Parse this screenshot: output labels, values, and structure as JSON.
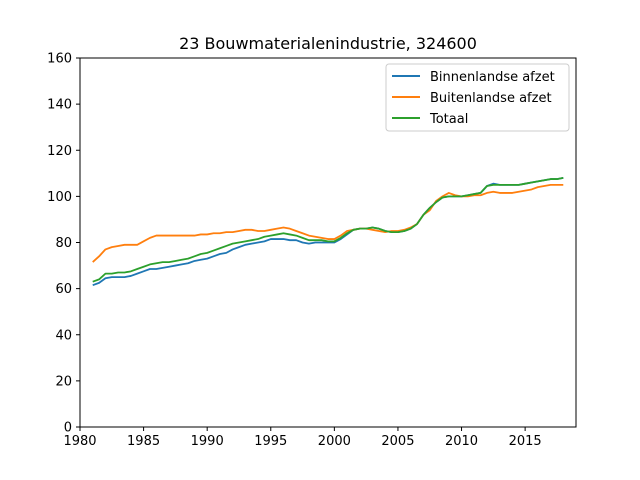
{
  "chart_data": {
    "type": "line",
    "title": "23 Bouwmaterialenindustrie, 324600",
    "xlabel": "",
    "ylabel": "",
    "xlim": [
      1980,
      2019
    ],
    "ylim": [
      0,
      160
    ],
    "xticks": [
      1980,
      1985,
      1990,
      1995,
      2000,
      2005,
      2010,
      2015
    ],
    "yticks": [
      0,
      20,
      40,
      60,
      80,
      100,
      120,
      140,
      160
    ],
    "grid": false,
    "legend_position": "top-right",
    "series": [
      {
        "name": "Binnenlandse afzet",
        "color": "#1f77b4",
        "x": [
          1981.0,
          1981.5,
          1982.0,
          1982.5,
          1983.0,
          1983.5,
          1984.0,
          1984.5,
          1985.0,
          1985.5,
          1986.0,
          1986.5,
          1987.0,
          1987.5,
          1988.0,
          1988.5,
          1989.0,
          1989.5,
          1990.0,
          1990.5,
          1991.0,
          1991.5,
          1992.0,
          1992.5,
          1993.0,
          1993.5,
          1994.0,
          1994.5,
          1995.0,
          1995.5,
          1996.0,
          1996.5,
          1997.0,
          1997.5,
          1998.0,
          1998.5,
          1999.0,
          1999.5,
          2000.0,
          2000.5,
          2001.0,
          2001.5,
          2002.0,
          2002.5,
          2003.0,
          2003.5,
          2004.0,
          2004.5,
          2005.0,
          2005.5,
          2006.0,
          2006.5,
          2007.0,
          2007.5,
          2008.0,
          2008.5,
          2009.0,
          2009.5,
          2010.0,
          2010.5,
          2011.0,
          2011.5,
          2012.0,
          2012.5,
          2013.0,
          2013.5,
          2014.0,
          2014.5,
          2015.0,
          2015.5,
          2016.0,
          2016.5,
          2017.0,
          2017.5,
          2018.0
        ],
        "values": [
          61.5,
          62.5,
          64.5,
          65.0,
          65.0,
          65.0,
          65.5,
          66.5,
          67.5,
          68.5,
          68.5,
          69.0,
          69.5,
          70.0,
          70.5,
          71.0,
          72.0,
          72.5,
          73.0,
          74.0,
          75.0,
          75.5,
          77.0,
          78.0,
          79.0,
          79.5,
          80.0,
          80.5,
          81.5,
          81.5,
          81.5,
          81.0,
          81.0,
          80.0,
          79.5,
          80.0,
          80.0,
          80.0,
          80.0,
          81.5,
          83.5,
          85.5,
          86.0,
          86.0,
          86.5,
          86.0,
          85.0,
          84.5,
          84.5,
          85.0,
          86.0,
          88.0,
          92.0,
          95.0,
          97.5,
          99.5,
          100.0,
          100.0,
          100.0,
          100.5,
          101.0,
          101.5,
          104.5,
          105.5,
          105.0,
          105.0,
          105.0,
          105.0,
          105.5,
          106.0,
          106.5,
          107.0,
          107.5,
          107.5,
          108.0
        ]
      },
      {
        "name": "Buitenlandse afzet",
        "color": "#ff7f0e",
        "x": [
          1981.0,
          1981.5,
          1982.0,
          1982.5,
          1983.0,
          1983.5,
          1984.0,
          1984.5,
          1985.0,
          1985.5,
          1986.0,
          1986.5,
          1987.0,
          1987.5,
          1988.0,
          1988.5,
          1989.0,
          1989.5,
          1990.0,
          1990.5,
          1991.0,
          1991.5,
          1992.0,
          1992.5,
          1993.0,
          1993.5,
          1994.0,
          1994.5,
          1995.0,
          1995.5,
          1996.0,
          1996.5,
          1997.0,
          1997.5,
          1998.0,
          1998.5,
          1999.0,
          1999.5,
          2000.0,
          2000.5,
          2001.0,
          2001.5,
          2002.0,
          2002.5,
          2003.0,
          2003.5,
          2004.0,
          2004.5,
          2005.0,
          2005.5,
          2006.0,
          2006.5,
          2007.0,
          2007.5,
          2008.0,
          2008.5,
          2009.0,
          2009.5,
          2010.0,
          2010.5,
          2011.0,
          2011.5,
          2012.0,
          2012.5,
          2013.0,
          2013.5,
          2014.0,
          2014.5,
          2015.0,
          2015.5,
          2016.0,
          2016.5,
          2017.0,
          2017.5,
          2018.0
        ],
        "values": [
          71.5,
          74.0,
          77.0,
          78.0,
          78.5,
          79.0,
          79.0,
          79.0,
          80.5,
          82.0,
          83.0,
          83.0,
          83.0,
          83.0,
          83.0,
          83.0,
          83.0,
          83.5,
          83.5,
          84.0,
          84.0,
          84.5,
          84.5,
          85.0,
          85.5,
          85.5,
          85.0,
          85.0,
          85.5,
          86.0,
          86.5,
          86.0,
          85.0,
          84.0,
          83.0,
          82.5,
          82.0,
          81.5,
          81.5,
          83.0,
          85.0,
          85.5,
          86.0,
          86.0,
          85.5,
          85.0,
          84.5,
          85.0,
          85.0,
          85.5,
          86.5,
          88.0,
          92.0,
          94.0,
          98.0,
          100.0,
          101.5,
          100.5,
          100.0,
          100.0,
          100.5,
          100.5,
          101.5,
          102.0,
          101.5,
          101.5,
          101.5,
          102.0,
          102.5,
          103.0,
          104.0,
          104.5,
          105.0,
          105.0,
          105.0
        ]
      },
      {
        "name": "Totaal",
        "color": "#2ca02c",
        "x": [
          1981.0,
          1981.5,
          1982.0,
          1982.5,
          1983.0,
          1983.5,
          1984.0,
          1984.5,
          1985.0,
          1985.5,
          1986.0,
          1986.5,
          1987.0,
          1987.5,
          1988.0,
          1988.5,
          1989.0,
          1989.5,
          1990.0,
          1990.5,
          1991.0,
          1991.5,
          1992.0,
          1992.5,
          1993.0,
          1993.5,
          1994.0,
          1994.5,
          1995.0,
          1995.5,
          1996.0,
          1996.5,
          1997.0,
          1997.5,
          1998.0,
          1998.5,
          1999.0,
          1999.5,
          2000.0,
          2000.5,
          2001.0,
          2001.5,
          2002.0,
          2002.5,
          2003.0,
          2003.5,
          2004.0,
          2004.5,
          2005.0,
          2005.5,
          2006.0,
          2006.5,
          2007.0,
          2007.5,
          2008.0,
          2008.5,
          2009.0,
          2009.5,
          2010.0,
          2010.5,
          2011.0,
          2011.5,
          2012.0,
          2012.5,
          2013.0,
          2013.5,
          2014.0,
          2014.5,
          2015.0,
          2015.5,
          2016.0,
          2016.5,
          2017.0,
          2017.5,
          2018.0
        ],
        "values": [
          63.0,
          64.0,
          66.5,
          66.5,
          67.0,
          67.0,
          67.5,
          68.5,
          69.5,
          70.5,
          71.0,
          71.5,
          71.5,
          72.0,
          72.5,
          73.0,
          74.0,
          75.0,
          75.5,
          76.5,
          77.5,
          78.5,
          79.5,
          80.0,
          80.5,
          81.0,
          81.5,
          82.5,
          83.0,
          83.5,
          84.0,
          83.5,
          83.0,
          82.0,
          81.0,
          81.0,
          81.0,
          80.5,
          80.5,
          82.0,
          84.0,
          85.5,
          86.0,
          86.0,
          86.5,
          86.0,
          85.0,
          84.5,
          84.5,
          85.0,
          86.0,
          88.0,
          92.0,
          95.0,
          97.5,
          99.5,
          100.0,
          100.0,
          100.0,
          100.5,
          101.0,
          101.5,
          104.5,
          105.0,
          105.0,
          105.0,
          105.0,
          105.0,
          105.5,
          106.0,
          106.5,
          107.0,
          107.5,
          107.5,
          108.0
        ]
      }
    ]
  }
}
